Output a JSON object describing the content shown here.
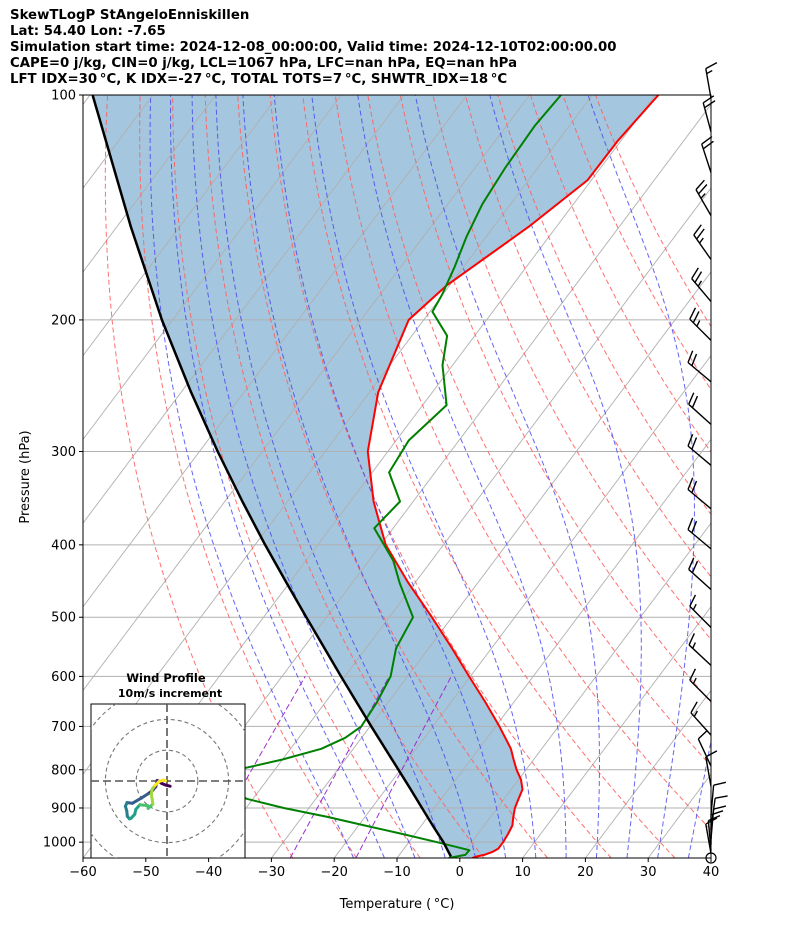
{
  "header": {
    "title": "SkewTLogP StAngeloEnniskillen",
    "location": "Lat: 54.40   Lon: -7.65",
    "times": "Simulation start time: 2024-12-08_00:00:00, Valid time: 2024-12-10T02:00:00.00",
    "parcel": "CAPE=0 j/kg, CIN=0 j/kg, LCL=1067 hPa, LFC=nan hPa, EQ=nan hPa",
    "indices": "LFT IDX=30 °C, K IDX=-27 °C, TOTAL TOTS=7 °C, SHWTR_IDX=18 °C"
  },
  "colors": {
    "temperature": "#ff0000",
    "dewpoint": "#008000",
    "parcel": "#000000",
    "fill": "#a4c6de",
    "isotherm": "#b0b0b0",
    "dry_adiabat": "#ff6060",
    "moist_adiabat": "#4a4af0",
    "mixing_ratio": "#9b30d0"
  },
  "chart_data": {
    "type": "line",
    "title": "SkewTLogP StAngeloEnniskillen",
    "xlabel": "Temperature ( °C)",
    "ylabel": "Pressure (hPa)",
    "xlim": [
      -60,
      40
    ],
    "ylim": [
      1050,
      100
    ],
    "x_ticks": [
      -60,
      -50,
      -40,
      -30,
      -20,
      -10,
      0,
      10,
      20,
      30,
      40
    ],
    "x_tick_labels": [
      "−60",
      "−50",
      "−40",
      "−30",
      "−20",
      "−10",
      "0",
      "10",
      "20",
      "30",
      "40"
    ],
    "y_ticks": [
      1000,
      900,
      800,
      700,
      600,
      500,
      400,
      300,
      200,
      100
    ],
    "y_tick_labels": [
      "1000",
      "900",
      "800",
      "700",
      "600",
      "500",
      "400",
      "300",
      "200",
      "100"
    ],
    "skew_slope": 0.75,
    "isotherm_values": [
      -150,
      -140,
      -130,
      -120,
      -110,
      -100,
      -90,
      -80,
      -70,
      -60,
      -50,
      -40,
      -30,
      -20,
      -10,
      0,
      10,
      20,
      30,
      40
    ],
    "dry_adiabat_thetas_c": [
      -30,
      -20,
      -10,
      0,
      10,
      20,
      30,
      40,
      50,
      60,
      70,
      80,
      90,
      100,
      110,
      120
    ],
    "moist_adiabat_thetas_c": [
      -20,
      -15,
      -10,
      -5,
      0,
      5,
      10,
      15,
      20,
      25,
      30,
      35
    ],
    "mixing_ratio_gkg": [
      0.1,
      0.4,
      1.0
    ],
    "series": [
      {
        "name": "Temperature",
        "pressure": [
          1050,
          1045,
          1040,
          1030,
          1020,
          1000,
          975,
          950,
          925,
          900,
          875,
          850,
          825,
          800,
          775,
          750,
          725,
          700,
          650,
          600,
          550,
          500,
          450,
          400,
          350,
          300,
          250,
          200,
          180,
          150,
          130,
          115,
          100
        ],
        "values": [
          2.0,
          2.5,
          3.5,
          4.5,
          5.0,
          5.0,
          4.8,
          4.5,
          3.6,
          2.8,
          2.3,
          1.8,
          0.4,
          -1.5,
          -3.2,
          -4.9,
          -7.1,
          -9.4,
          -14.5,
          -20.2,
          -26.3,
          -33.2,
          -41.0,
          -49.2,
          -56.3,
          -63.2,
          -68.6,
          -72.4,
          -70.5,
          -64.4,
          -60.6,
          -60.5,
          -59.5
        ]
      },
      {
        "name": "Dewpoint",
        "pressure": [
          1050,
          1040,
          1025,
          1000,
          975,
          950,
          925,
          900,
          875,
          850,
          825,
          800,
          775,
          750,
          725,
          700,
          650,
          600,
          550,
          500,
          450,
          420,
          380,
          350,
          320,
          290,
          260,
          230,
          210,
          195,
          185,
          170,
          155,
          140,
          125,
          110,
          100
        ],
        "values": [
          -1.8,
          0.5,
          0.6,
          -5.5,
          -12.0,
          -19.0,
          -26.0,
          -34.0,
          -41.0,
          -45.0,
          -46.5,
          -46.0,
          -40.0,
          -35.1,
          -32.6,
          -31.4,
          -31.8,
          -32.7,
          -35.2,
          -36.2,
          -42.4,
          -46.1,
          -53.0,
          -52.1,
          -57.3,
          -58.0,
          -56.2,
          -61.6,
          -64.4,
          -69.6,
          -70.1,
          -71.4,
          -73.1,
          -74.5,
          -75.2,
          -75.5,
          -75.0
        ]
      },
      {
        "name": "Parcel",
        "pressure": [
          1045,
          1000,
          950,
          900,
          850,
          800,
          750,
          700,
          650,
          600,
          550,
          500,
          450,
          400,
          350,
          300,
          250,
          200,
          150,
          100
        ],
        "values": [
          -1.6,
          -4.5,
          -8.2,
          -12.0,
          -16.0,
          -20.3,
          -24.9,
          -29.8,
          -35.0,
          -40.6,
          -46.6,
          -53.2,
          -60.4,
          -68.4,
          -77.2,
          -87.1,
          -98.4,
          -111.7,
          -127.8,
          -149.6
        ]
      }
    ],
    "wind_barbs": [
      {
        "p": 1036,
        "speed_kt": 10,
        "dir": 80
      },
      {
        "p": 1026,
        "speed_kt": 10,
        "dir": 85
      },
      {
        "p": 1008,
        "speed_kt": 10,
        "dir": 90
      },
      {
        "p": 990,
        "speed_kt": 10,
        "dir": 95
      },
      {
        "p": 957,
        "speed_kt": 10,
        "dir": 98
      },
      {
        "p": 920,
        "speed_kt": 10,
        "dir": 95
      },
      {
        "p": 842,
        "speed_kt": 10,
        "dir": 80
      },
      {
        "p": 791,
        "speed_kt": 10,
        "dir": 65
      },
      {
        "p": 719,
        "speed_kt": 15,
        "dir": 48
      },
      {
        "p": 648,
        "speed_kt": 15,
        "dir": 45
      },
      {
        "p": 580,
        "speed_kt": 15,
        "dir": 43
      },
      {
        "p": 516,
        "speed_kt": 15,
        "dir": 45
      },
      {
        "p": 459,
        "speed_kt": 20,
        "dir": 42
      },
      {
        "p": 405,
        "speed_kt": 20,
        "dir": 40
      },
      {
        "p": 358,
        "speed_kt": 20,
        "dir": 40
      },
      {
        "p": 313,
        "speed_kt": 20,
        "dir": 40
      },
      {
        "p": 276,
        "speed_kt": 20,
        "dir": 42
      },
      {
        "p": 242,
        "speed_kt": 20,
        "dir": 40
      },
      {
        "p": 213,
        "speed_kt": 25,
        "dir": 45
      },
      {
        "p": 189,
        "speed_kt": 25,
        "dir": 50
      },
      {
        "p": 166,
        "speed_kt": 25,
        "dir": 55
      },
      {
        "p": 145,
        "speed_kt": 25,
        "dir": 60
      },
      {
        "p": 127,
        "speed_kt": 20,
        "dir": 72
      },
      {
        "p": 112,
        "speed_kt": 20,
        "dir": 75
      },
      {
        "p": 101,
        "speed_kt": 15,
        "dir": 80
      }
    ],
    "wind_profile": {
      "title": "Wind Profile",
      "subtitle": "10m/s increment",
      "rings_ms": [
        10,
        20,
        30,
        40
      ],
      "range_ms": 25,
      "u": [
        1.0,
        -0.5,
        -1.7,
        -2.5,
        -3.2,
        -3.3,
        -3.6,
        -4.6,
        -6.2,
        -8.4,
        -11.2,
        -13.0,
        -13.5,
        -13.1,
        -12.9,
        -12.2,
        -11.7,
        -10.5,
        -10.1,
        -8.8,
        -6.3,
        -6.1,
        -4.6,
        -4.8,
        -5.1,
        -4.8,
        -3.9,
        -2.6,
        -1.2,
        -0.5
      ],
      "v": [
        -1.7,
        -1.3,
        -0.8,
        -0.2,
        0.2,
        -0.5,
        -1.8,
        -3.0,
        -4.2,
        -5.6,
        -7.2,
        -7.0,
        -8.2,
        -9.6,
        -11.4,
        -12.3,
        -12.1,
        -10.8,
        -9.2,
        -7.7,
        -8.0,
        -8.9,
        -7.5,
        -6.0,
        -4.3,
        -2.7,
        -1.4,
        -0.2,
        0.3,
        0.1
      ]
    }
  }
}
